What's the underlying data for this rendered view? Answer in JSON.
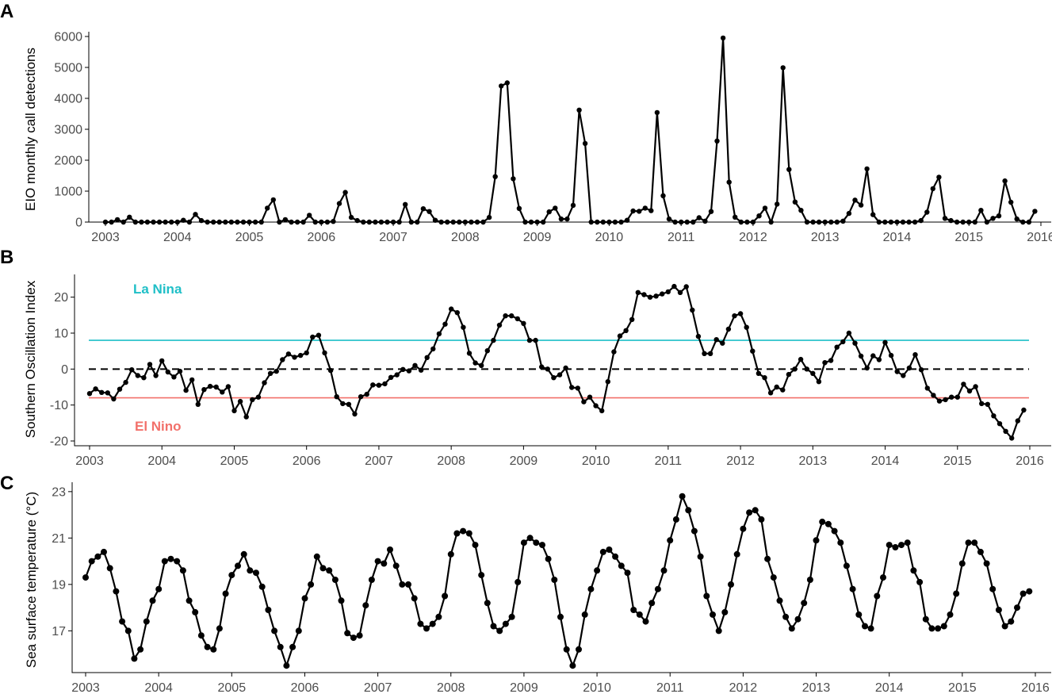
{
  "chart_data": [
    {
      "panel": "A",
      "type": "line",
      "ylabel": "EIO monthly call detections",
      "xlabel": "",
      "xlim": [
        2003,
        2016
      ],
      "ylim": [
        0,
        6000
      ],
      "xticks": [
        "2003",
        "2004",
        "2005",
        "2006",
        "2007",
        "2008",
        "2009",
        "2010",
        "2011",
        "2012",
        "2013",
        "2014",
        "2015",
        "2016"
      ],
      "yticks": [
        0,
        1000,
        2000,
        3000,
        4000,
        5000,
        6000
      ],
      "series": [
        {
          "x_start": 2003.0,
          "x_step": 0.083333,
          "values": [
            0,
            0,
            80,
            0,
            160,
            0,
            0,
            0,
            0,
            0,
            0,
            0,
            0,
            60,
            0,
            250,
            50,
            0,
            0,
            0,
            0,
            0,
            0,
            0,
            0,
            0,
            0,
            450,
            720,
            0,
            80,
            0,
            0,
            0,
            220,
            0,
            0,
            0,
            20,
            600,
            960,
            150,
            50,
            0,
            0,
            0,
            0,
            0,
            0,
            0,
            570,
            0,
            0,
            430,
            340,
            60,
            0,
            0,
            0,
            0,
            0,
            0,
            0,
            0,
            150,
            1470,
            4400,
            4500,
            1400,
            440,
            0,
            0,
            0,
            0,
            330,
            450,
            100,
            100,
            540,
            3620,
            2540,
            0,
            0,
            0,
            0,
            0,
            0,
            60,
            360,
            350,
            450,
            370,
            3540,
            850,
            100,
            0,
            0,
            0,
            0,
            140,
            30,
            340,
            2620,
            5950,
            1290,
            160,
            0,
            0,
            0,
            200,
            450,
            0,
            580,
            4990,
            1700,
            650,
            380,
            0,
            0,
            0,
            0,
            0,
            0,
            30,
            280,
            710,
            550,
            1720,
            240,
            0,
            0,
            0,
            0,
            0,
            0,
            0,
            50,
            320,
            1080,
            1450,
            120,
            50,
            0,
            0,
            0,
            0,
            380,
            0,
            120,
            200,
            1330,
            640,
            100,
            0,
            0,
            350
          ]
        }
      ]
    },
    {
      "panel": "B",
      "type": "line",
      "ylabel": "Southern Oscillation Index",
      "xlabel": "",
      "xlim": [
        2003,
        2016
      ],
      "ylim": [
        -20,
        25
      ],
      "xticks": [
        "2003",
        "2004",
        "2005",
        "2006",
        "2007",
        "2008",
        "2009",
        "2010",
        "2011",
        "2012",
        "2013",
        "2014",
        "2015",
        "2016"
      ],
      "yticks": [
        -20,
        -10,
        0,
        10,
        20
      ],
      "reference_lines": [
        {
          "y": 8,
          "color": "#1fbfc7",
          "label": "La Nina",
          "style": "solid"
        },
        {
          "y": 0,
          "color": "#000000",
          "label": "",
          "style": "dashed"
        },
        {
          "y": -8,
          "color": "#f2706a",
          "label": "El Nino",
          "style": "solid"
        }
      ],
      "series": [
        {
          "x_start": 2003.0,
          "x_step": 0.083333,
          "values": [
            -6.8,
            -5.5,
            -6.5,
            -6.6,
            -8.3,
            -5.6,
            -3.7,
            -0.2,
            -1.8,
            -2.4,
            1.3,
            -1.8,
            2.3,
            -0.8,
            -2.2,
            -0.6,
            -5.9,
            -3.0,
            -9.8,
            -5.7,
            -4.8,
            -5.0,
            -6.4,
            -4.9,
            -11.6,
            -9.0,
            -13.3,
            -8.5,
            -7.8,
            -3.8,
            -1.2,
            -0.6,
            2.6,
            4.2,
            3.3,
            3.8,
            4.5,
            8.9,
            9.4,
            4.5,
            -0.4,
            -7.7,
            -9.6,
            -9.8,
            -12.5,
            -7.7,
            -7.0,
            -4.4,
            -4.5,
            -4.1,
            -2.3,
            -1.6,
            -0.1,
            -0.5,
            1.0,
            -0.3,
            3.2,
            5.6,
            9.8,
            12.5,
            16.7,
            15.7,
            11.6,
            4.4,
            1.7,
            1.0,
            5.1,
            8.0,
            12.2,
            14.8,
            14.8,
            14.0,
            12.7,
            8.0,
            8.0,
            0.6,
            0.0,
            -2.4,
            -1.6,
            0.3,
            -5.1,
            -5.3,
            -9.1,
            -7.8,
            -10.2,
            -11.6,
            -3.5,
            4.8,
            9.2,
            10.7,
            13.8,
            21.3,
            20.7,
            20.0,
            20.3,
            20.9,
            21.5,
            23.0,
            21.3,
            22.9,
            16.4,
            9.1,
            4.3,
            4.3,
            8.2,
            7.2,
            11.1,
            14.8,
            15.4,
            11.6,
            5.0,
            -1.2,
            -2.4,
            -6.6,
            -5.0,
            -5.8,
            -1.5,
            0.0,
            2.7,
            0.0,
            -1.2,
            -3.5,
            1.8,
            2.4,
            6.1,
            7.6,
            10.0,
            7.2,
            3.6,
            0.3,
            3.7,
            2.6,
            7.4,
            3.8,
            -0.7,
            -1.8,
            0.3,
            4.0,
            -0.2,
            -5.3,
            -7.3,
            -8.9,
            -8.5,
            -7.8,
            -7.8,
            -4.2,
            -6.1,
            -4.9,
            -9.6,
            -9.8,
            -13.0,
            -15.2,
            -17.3,
            -19.2,
            -14.4,
            -11.4
          ]
        }
      ]
    },
    {
      "panel": "C",
      "type": "line",
      "ylabel": "Sea surface temperature (°C)",
      "xlabel": "",
      "xlim": [
        2003,
        2016
      ],
      "ylim": [
        15.2,
        23.2
      ],
      "xticks": [
        "2003",
        "2004",
        "2005",
        "2006",
        "2007",
        "2008",
        "2009",
        "2010",
        "2011",
        "2012",
        "2013",
        "2014",
        "2015",
        "2016"
      ],
      "yticks": [
        17,
        19,
        21,
        23
      ],
      "series": [
        {
          "x_start": 2003.0,
          "x_step": 0.083333,
          "values": [
            19.3,
            20.0,
            20.2,
            20.4,
            19.7,
            18.7,
            17.4,
            17.0,
            15.8,
            16.2,
            17.4,
            18.3,
            18.8,
            20.0,
            20.1,
            20.0,
            19.6,
            18.3,
            17.8,
            16.8,
            16.3,
            16.2,
            17.1,
            18.6,
            19.4,
            19.8,
            20.3,
            19.6,
            19.5,
            18.9,
            17.9,
            17.0,
            16.3,
            15.5,
            16.3,
            17.0,
            18.4,
            19.0,
            20.2,
            19.7,
            19.6,
            19.2,
            18.3,
            16.9,
            16.7,
            16.8,
            18.1,
            19.2,
            20.0,
            19.9,
            20.5,
            19.8,
            19.0,
            19.0,
            18.4,
            17.3,
            17.1,
            17.3,
            17.6,
            18.5,
            20.3,
            21.2,
            21.3,
            21.2,
            20.7,
            19.4,
            18.2,
            17.2,
            17.0,
            17.3,
            17.6,
            19.1,
            20.8,
            21.0,
            20.8,
            20.7,
            20.1,
            19.2,
            17.6,
            16.2,
            15.5,
            16.2,
            17.7,
            18.8,
            19.6,
            20.4,
            20.5,
            20.2,
            19.8,
            19.5,
            17.9,
            17.7,
            17.4,
            18.2,
            18.8,
            19.6,
            20.9,
            21.8,
            22.8,
            22.2,
            21.3,
            20.2,
            18.5,
            17.7,
            17.0,
            17.8,
            19.0,
            20.3,
            21.4,
            22.1,
            22.2,
            21.8,
            20.1,
            19.3,
            18.3,
            17.6,
            17.1,
            17.5,
            18.2,
            19.2,
            20.9,
            21.7,
            21.6,
            21.3,
            20.8,
            19.8,
            18.8,
            17.7,
            17.2,
            17.1,
            18.5,
            19.3,
            20.7,
            20.6,
            20.7,
            20.8,
            19.6,
            19.1,
            17.5,
            17.1,
            17.1,
            17.2,
            17.7,
            18.6,
            19.9,
            20.8,
            20.8,
            20.4,
            19.9,
            18.8,
            17.9,
            17.2,
            17.4,
            18.0,
            18.6,
            18.7
          ]
        }
      ]
    }
  ]
}
